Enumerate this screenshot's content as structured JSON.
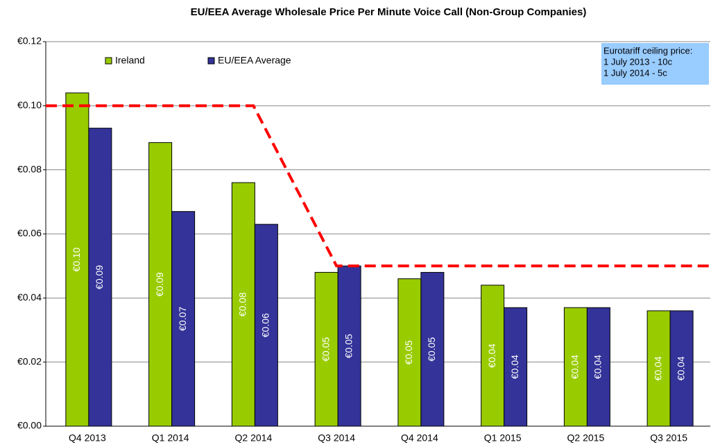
{
  "chart_data": {
    "type": "bar",
    "title": "EU/EEA Average Wholesale Price Per Minute Voice Call (Non-Group Companies)",
    "categories": [
      "Q4 2013",
      "Q1 2014",
      "Q2 2014",
      "Q3 2014",
      "Q4 2014",
      "Q1 2015",
      "Q2 2015",
      "Q3 2015"
    ],
    "series": [
      {
        "name": "Ireland",
        "color": "#99cc00",
        "values": [
          0.104,
          0.0885,
          0.076,
          0.048,
          0.046,
          0.044,
          0.037,
          0.036
        ],
        "value_labels": [
          "€0.10",
          "€0.09",
          "€0.08",
          "€0.05",
          "€0.05",
          "€0.04",
          "€0.04",
          "€0.04"
        ]
      },
      {
        "name": "EU/EEA Average",
        "color": "#333399",
        "values": [
          0.093,
          0.067,
          0.063,
          0.05,
          0.048,
          0.037,
          0.037,
          0.036
        ],
        "value_labels": [
          "€0.09",
          "€0.07",
          "€0.06",
          "€0.05",
          "€0.05",
          "€0.04",
          "€0.04",
          "€0.04"
        ]
      }
    ],
    "ceiling_line": {
      "color": "#ff0000",
      "values": [
        0.1,
        0.1,
        0.1,
        0.05,
        0.05,
        0.05,
        0.05,
        0.05
      ]
    },
    "annotation": [
      "Eurotariff ceiling price:",
      "1 July 2013 - 10c",
      "1 July 2014 - 5c"
    ],
    "ylim": [
      0,
      0.12
    ],
    "yticks": [
      {
        "value": 0,
        "label": "€0.00"
      },
      {
        "value": 0.02,
        "label": "€0.02"
      },
      {
        "value": 0.04,
        "label": "€0.04"
      },
      {
        "value": 0.06,
        "label": "€0.06"
      },
      {
        "value": 0.08,
        "label": "€0.08"
      },
      {
        "value": 0.1,
        "label": "€0.10"
      },
      {
        "value": 0.12,
        "label": "€0.12"
      }
    ],
    "grid": true
  }
}
